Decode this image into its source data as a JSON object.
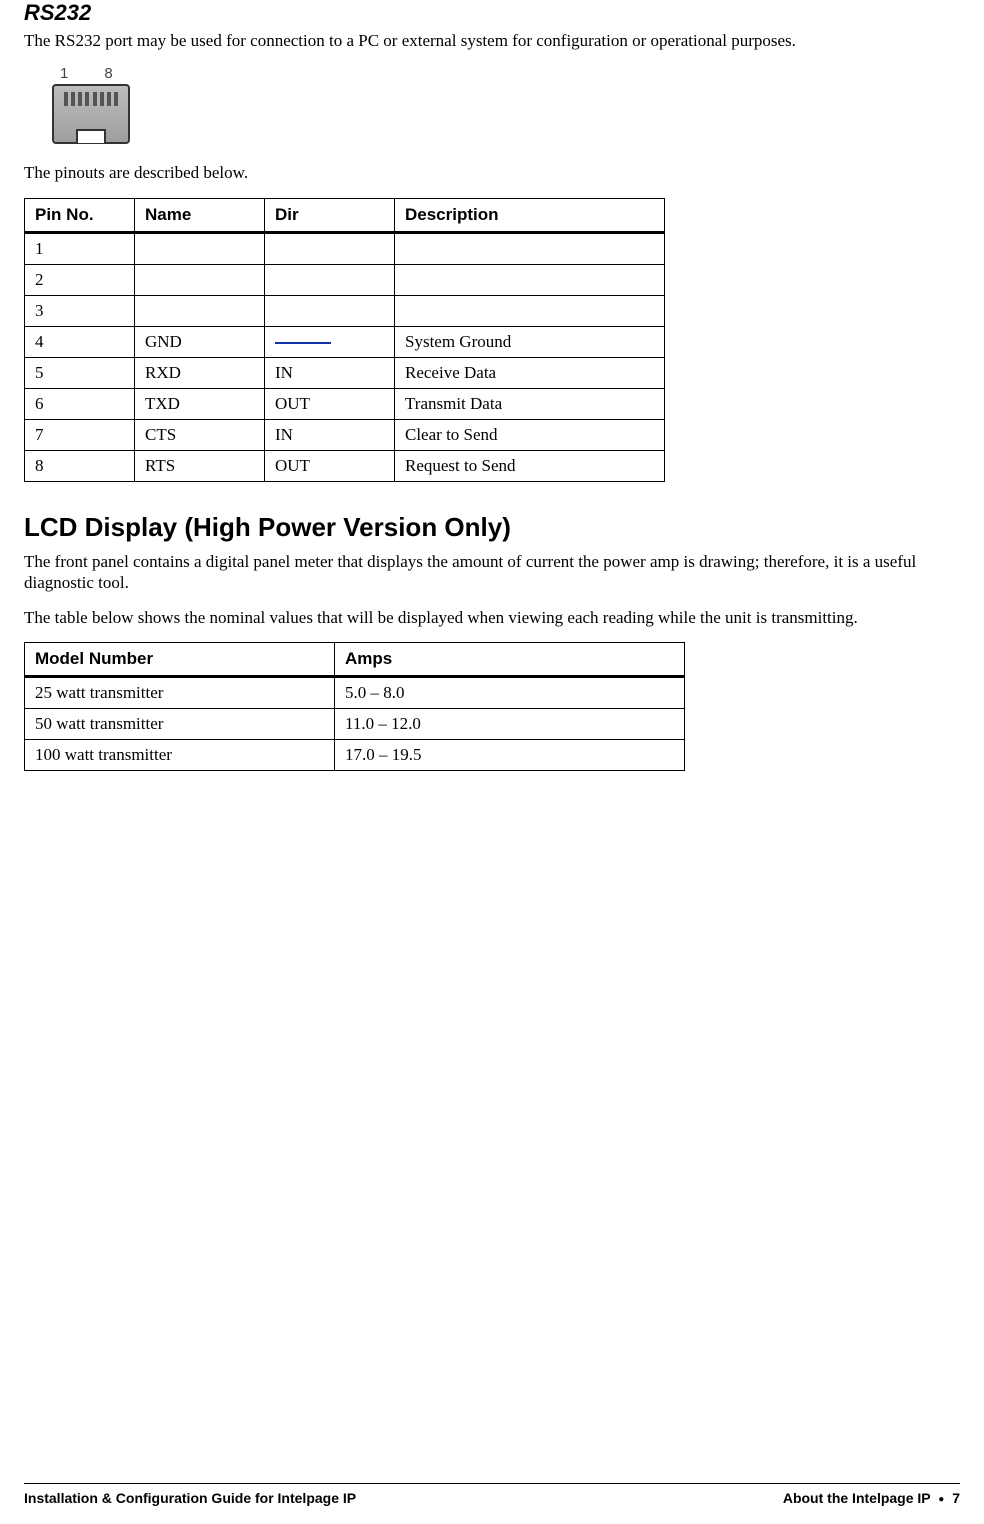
{
  "section1": {
    "heading": "RS232",
    "intro": "The RS232 port may be used for connection to a PC or external system for configuration or operational purposes.",
    "connector": {
      "pin_left": "1",
      "pin_right": "8"
    },
    "pinout_caption": "The pinouts are described below.",
    "table": {
      "headers": [
        "Pin No.",
        "Name",
        "Dir",
        "Description"
      ],
      "rows": [
        {
          "pin": "1",
          "name": "",
          "dir": "",
          "desc": ""
        },
        {
          "pin": "2",
          "name": "",
          "dir": "",
          "desc": ""
        },
        {
          "pin": "3",
          "name": "",
          "dir": "",
          "desc": ""
        },
        {
          "pin": "4",
          "name": "GND",
          "dir": "__LINE__",
          "desc": "System Ground"
        },
        {
          "pin": "5",
          "name": "RXD",
          "dir": "IN",
          "desc": "Receive Data"
        },
        {
          "pin": "6",
          "name": "TXD",
          "dir": "OUT",
          "desc": "Transmit Data"
        },
        {
          "pin": "7",
          "name": "CTS",
          "dir": "IN",
          "desc": "Clear to Send"
        },
        {
          "pin": "8",
          "name": "RTS",
          "dir": "OUT",
          "desc": "Request to Send"
        }
      ]
    }
  },
  "section2": {
    "heading": "LCD Display (High Power Version Only)",
    "para1": "The front panel contains a digital panel meter that displays the amount of current the power amp is drawing; therefore, it is a useful diagnostic tool.",
    "para2": "The table below shows the nominal values that will be displayed when viewing each reading while the unit is transmitting.",
    "table": {
      "headers": [
        "Model Number",
        "Amps"
      ],
      "rows": [
        {
          "model": "25 watt transmitter",
          "amps": "5.0 – 8.0"
        },
        {
          "model": "50 watt transmitter",
          "amps": "11.0 – 12.0"
        },
        {
          "model": "100 watt transmitter",
          "amps": "17.0 – 19.5"
        }
      ]
    }
  },
  "footer": {
    "left": "Installation & Configuration Guide for Intelpage IP",
    "right_prefix": "About the Intelpage IP",
    "right_page": "7"
  }
}
